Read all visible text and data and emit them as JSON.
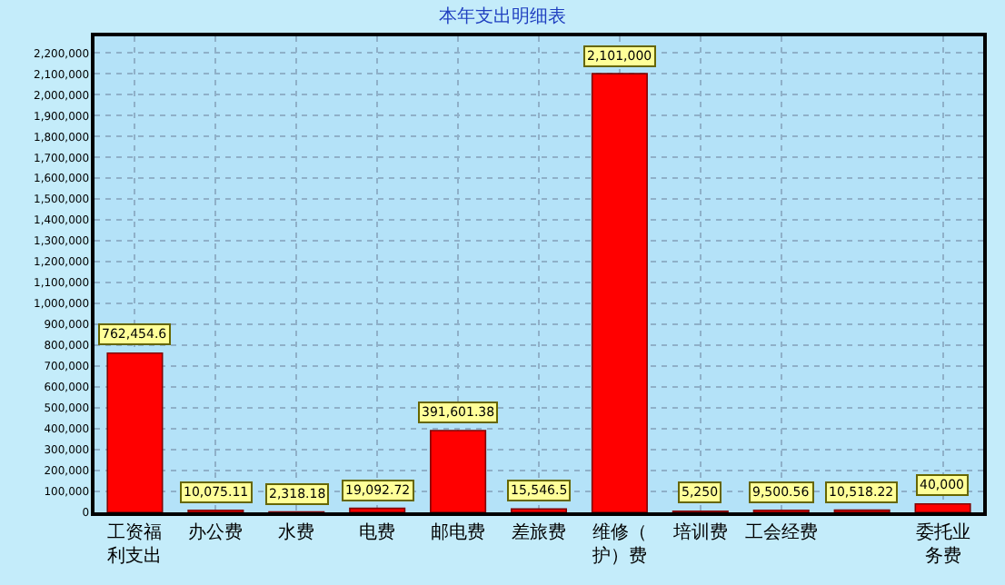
{
  "chart_data": {
    "type": "bar",
    "title": "本年支出明细表",
    "categories": [
      "工资福利支出",
      "办公费",
      "水费",
      "电费",
      "邮电费",
      "差旅费",
      "维修（护）费",
      "培训费",
      "工会经费",
      null,
      "委托业务费"
    ],
    "values": [
      762454.6,
      10075.11,
      2318.18,
      19092.72,
      391601.38,
      15546.5,
      2101000,
      5250,
      9500.56,
      10518.22,
      40000
    ],
    "value_labels": [
      "762,454.6",
      "10,075.11",
      "2,318.18",
      "19,092.72",
      "391,601.38",
      "15,546.5",
      "2,101,000",
      "5,250",
      "9,500.56",
      "10,518.22",
      "40,000"
    ],
    "color": "#ff0000",
    "ylim": [
      0,
      2280000
    ],
    "yticks": [
      0,
      {
        "value": 100000,
        "label": "100,000"
      },
      {
        "value": 200000,
        "label": "200,000"
      },
      {
        "value": 300000,
        "label": "300,000"
      },
      {
        "value": 400000,
        "label": "400,000"
      },
      {
        "value": 500000,
        "label": "500,000"
      },
      {
        "value": 600000,
        "label": "600,000"
      },
      {
        "value": 700000,
        "label": "700,000"
      },
      {
        "value": 800000,
        "label": "800,000"
      },
      {
        "value": 900000,
        "label": "900,000"
      },
      {
        "value": 1000000,
        "label": "1,000,000"
      },
      {
        "value": 1100000,
        "label": "1,100,000"
      },
      {
        "value": 1200000,
        "label": "1,200,000"
      },
      {
        "value": 1300000,
        "label": "1,300,000"
      },
      {
        "value": 1400000,
        "label": "1,400,000"
      },
      {
        "value": 1500000,
        "label": "1,500,000"
      },
      {
        "value": 1600000,
        "label": "1,600,000"
      },
      {
        "value": 1700000,
        "label": "1,700,000"
      },
      {
        "value": 1800000,
        "label": "1,800,000"
      },
      {
        "value": 1900000,
        "label": "1,900,000"
      },
      {
        "value": 2000000,
        "label": "2,000,000"
      },
      {
        "value": 2100000,
        "label": "2,100,000"
      },
      {
        "value": 2200000,
        "label": "2,200,000"
      }
    ],
    "grid": true,
    "legend": false
  }
}
